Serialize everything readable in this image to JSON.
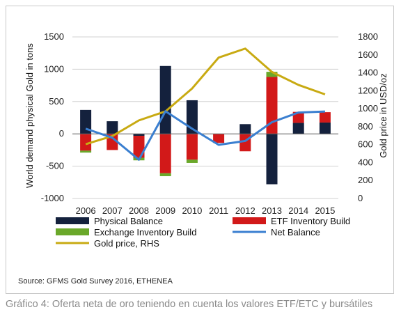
{
  "chart_data": {
    "type": "bar",
    "stacked": true,
    "categories": [
      "2006",
      "2007",
      "2008",
      "2009",
      "2010",
      "2011",
      "2012",
      "2013",
      "2014",
      "2015"
    ],
    "ylabel_left": "World demand physical Gold in tons",
    "ylabel_right": "Gold price in USD/oz",
    "ylim_left": [
      -1000,
      1500
    ],
    "ylim_right": [
      0,
      1800
    ],
    "yticks_left": [
      -1000,
      -500,
      0,
      500,
      1000,
      1500
    ],
    "yticks_right": [
      0,
      200,
      400,
      600,
      800,
      1000,
      1200,
      1400,
      1600,
      1800
    ],
    "grid": "horizontal",
    "legend_position": "bottom",
    "bar_series": [
      {
        "name": "Physical Balance",
        "color": "#14213d",
        "values": [
          370,
          195,
          -30,
          1050,
          520,
          0,
          150,
          -780,
          170,
          175
        ]
      },
      {
        "name": "ETF Inventory Build",
        "color": "#d21919",
        "values": [
          -260,
          -250,
          -340,
          -610,
          -400,
          -140,
          -270,
          880,
          170,
          160
        ]
      },
      {
        "name": "Exchange Inventory Build",
        "color": "#6aa82a",
        "values": [
          -30,
          0,
          -40,
          -45,
          -50,
          0,
          0,
          80,
          0,
          0
        ]
      }
    ],
    "line_series": [
      {
        "name": "Gold price, RHS",
        "color": "#c8aa12",
        "axis": "right",
        "values": [
          605,
          695,
          870,
          970,
          1225,
          1570,
          1670,
          1410,
          1265,
          1160
        ]
      },
      {
        "name": "Net Balance",
        "color": "#3a7fd0",
        "axis": "left",
        "values": [
          80,
          -60,
          -400,
          350,
          80,
          -170,
          -110,
          180,
          330,
          345
        ]
      }
    ],
    "legend": [
      {
        "name": "Physical Balance",
        "kind": "box",
        "color": "#14213d"
      },
      {
        "name": "ETF Inventory Build",
        "kind": "box",
        "color": "#d21919"
      },
      {
        "name": "Exchange Inventory Build",
        "kind": "box",
        "color": "#6aa82a"
      },
      {
        "name": "Net Balance",
        "kind": "line",
        "color": "#3a7fd0"
      },
      {
        "name": "Gold price, RHS",
        "kind": "line",
        "color": "#c8aa12"
      }
    ]
  },
  "source": "Source: GFMS Gold Survey 2016, ETHENEA",
  "caption": "Gráfico 4: Oferta neta de oro teniendo en cuenta los valores ETF/ETC y bursátiles"
}
